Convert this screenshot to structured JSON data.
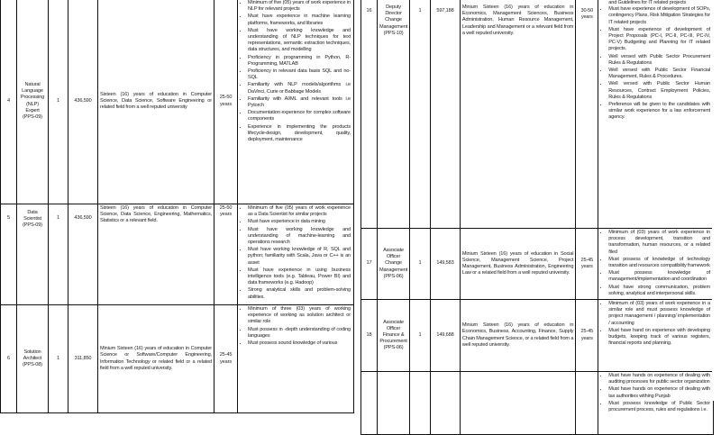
{
  "left_rows": [
    {
      "no": "4",
      "position": "Natural Language Processing (NLP) Expert (PPS-09)",
      "posts": "1",
      "salary": "436,590",
      "qualification": "Sixteen (16) years of education in Computer Science, Data Science, Software Engineering or related field from a well reputed university",
      "age": "25-50 years",
      "experience": [
        "Minimum of five (05) years of work experience in NLP for relevant projects",
        "Must have experience in machine learning platforms, frameworks, and libraries",
        "Must have working knowledge and understanding of NLP techniques for text representations, semantic extraction techniques, data structures, and modelling",
        "Proficiency in programming in Python, R-Programming, MATLAB",
        "Proficiency in relevant data basis SQL and no-SQL",
        "Familiarity with NLP models/algorithms i.e DaVinci, Curie or Babbage Models",
        "Familiarity with AI/ML and relevant tools i.e Pytorch",
        "Documentation experience for complex software components",
        "Experience in implementing the products lifecycle-design, development, quality, deployment, maintenance"
      ]
    },
    {
      "no": "5",
      "position": "Data Scientist (PPS-09)",
      "posts": "1",
      "salary": "436,590",
      "qualification": "Sixteen (16) years of education in Computer Science, Data Science, Engineering, Mathematics, Statistics or a relevant field.",
      "age": "25-50 years",
      "experience": [
        "Minimum of five (05) years of work experience as a Data Scientist for similar projects",
        "Must have experience in data mining",
        "Must have working knowledge and understanding of machine-learning and operations research",
        "Must have working knowledge of R, SQL and python; familiarity with Scala, Java or C++ is an asset",
        "Must have experience in using business intelligence tools (e.g. Tableau, Power BI) and data frameworks (e.g. Hadoop)",
        "Strong analytical skills and problem-solving abilities."
      ]
    },
    {
      "no": "6",
      "position": "Solution Architect (PPS-08)",
      "posts": "1",
      "salary": "311,850",
      "qualification": "Minium Sixteen (16) years of education in Computer Science or Software/Computer Engineering, Information Technology or related field or a related field from a well reputed university.",
      "age": "25-45 years",
      "experience": [
        "Minimum of three (03) years of working experience of working as solution architect or similar role",
        "Must possess in -depth understanding of coding languages",
        "Must possess sound knowledge of various"
      ]
    }
  ],
  "right_rows": [
    {
      "no": "16",
      "position": "Deputy Director Change Management (PPS-10)",
      "posts": "1",
      "salary": "597,188",
      "qualification": "Minium Sixteen (16) years of education in Economics, Management Sciences, Business Administration, Human Resource Management, Leadership and Management or a relevant field from a well reputed university.",
      "age": "30-50 years",
      "experience_top": "and Guidelines for IT related projects",
      "experience": [
        "Must have experience of development of SOPs, contingency Plans, Risk Mitigation Strategies for IT related projects",
        "Must have experience of development of Project Proposals (PC-I, PC-II, PC-III, PC-IV, PC-V) Budgeting and Planning for IT related projects.",
        "Well versed with Public Sector Procurement Rules & Regulations",
        "Well versed with Public Sector Financial Management, Rules & Procedures.",
        "Well versed with Public Sector Human Resources, Contract Employment Policies, Rules & Regulations",
        "Preference will be given to the candidates with similar work experience for a law enforcement agency."
      ]
    },
    {
      "no": "17",
      "position": "Associate Officer Change Management (PPS-06)",
      "posts": "1",
      "salary": "149,583",
      "qualification": "Minium Sixteen (16) years of education in Social Science, Management Science, Project Management, Business Administration, Engineering Law or a related field from a well reputed university.",
      "age": "25-45 years",
      "experience": [
        "Minimum of (03) years of work experience in process development, transition and transformation, human resources, or a related filed",
        "Must possess of knowledge of technology transition and resources compatibility framework",
        "Must possess knowledge of management/implementation and coordination",
        "Must have strong communication, problem solving, analytical and interpersonal skills."
      ]
    },
    {
      "no": "18",
      "position": "Associate Officer Finance & Procurement (PPS-06)",
      "posts": "1",
      "salary": "149,688",
      "qualification": "Minium Sixteen (16) years of education in Economics, Business, Accounting, Finance, Supply Chain Management Science, or a related field from a well reputed university.",
      "age": "25-45 years",
      "experience": [
        "Minimum of (03) years of work experience in a similar role and must possess knowledge of project management / planning/ implementation / accounting",
        "Must have hand on experience with developing budgets, keeping track of various registers, financial reports and planning."
      ]
    },
    {
      "experience": [
        "Must have hands on experience of dealing with auditing processes for public sector organization",
        "Must have hands on experience of dealing with tax authorities withing Punjab",
        "Must possess knowledge of Public Sector procurement process, rules and regulations i.e."
      ]
    }
  ]
}
